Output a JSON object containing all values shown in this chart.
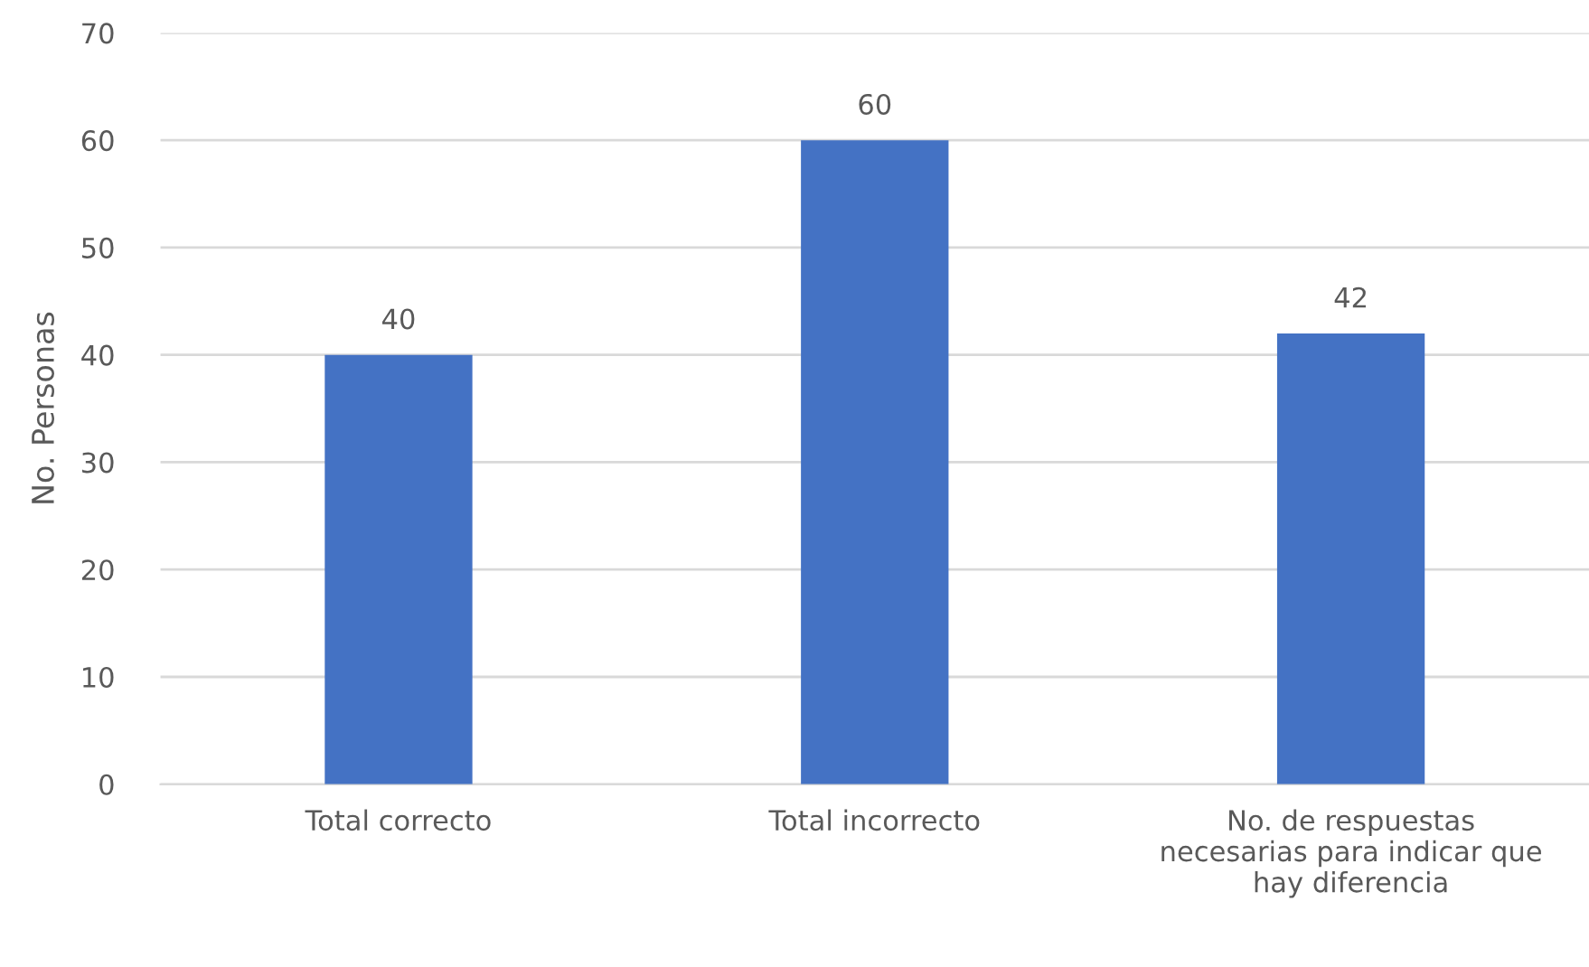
{
  "chart_data": {
    "type": "bar",
    "ylabel": "No. Personas",
    "categories": [
      "Total correcto",
      "Total incorrecto",
      "No. de respuestas\nnecesarias para indicar que\nhay diferencia"
    ],
    "values": [
      40,
      60,
      42
    ],
    "color": "#4472c4",
    "ylim": [
      0,
      70
    ],
    "yticks": [
      0,
      10,
      20,
      30,
      40,
      50,
      60,
      70
    ],
    "grid": "y",
    "data_labels": true
  }
}
